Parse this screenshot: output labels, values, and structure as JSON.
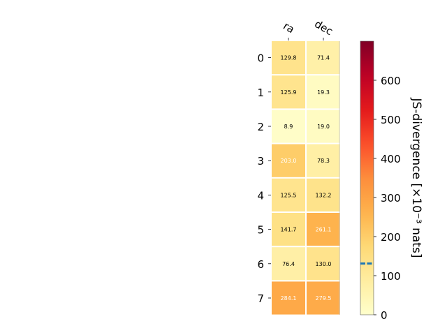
{
  "chart_data": {
    "type": "heatmap",
    "title": "",
    "columns": [
      "ra",
      "dec"
    ],
    "rows": [
      "0",
      "1",
      "2",
      "3",
      "4",
      "5",
      "6",
      "7"
    ],
    "values": [
      [
        129.8,
        71.4
      ],
      [
        125.9,
        19.3
      ],
      [
        8.9,
        19.0
      ],
      [
        203.0,
        78.3
      ],
      [
        125.5,
        132.2
      ],
      [
        141.7,
        261.1
      ],
      [
        76.4,
        130.0
      ],
      [
        284.1,
        279.5
      ]
    ],
    "cell_labels": [
      [
        "129.8",
        "71.4"
      ],
      [
        "125.9",
        "19.3"
      ],
      [
        "8.9",
        "19.0"
      ],
      [
        "203.0",
        "78.3"
      ],
      [
        "125.5",
        "132.2"
      ],
      [
        "141.7",
        "261.1"
      ],
      [
        "76.4",
        "130.0"
      ],
      [
        "284.1",
        "279.5"
      ]
    ],
    "colormap": "YlOrRd",
    "colorbar": {
      "label": "JS-divergence [×10⁻³ nats]",
      "range": [
        0,
        700
      ],
      "ticks": [
        0,
        100,
        200,
        300,
        400,
        500,
        600
      ],
      "tick_labels": [
        "0",
        "100",
        "200",
        "300",
        "400",
        "500",
        "600"
      ],
      "marker_value": 131,
      "marker_color": "#1f77b4"
    },
    "colors": {
      "text_dark": "#000000",
      "text_light": "#ffffff",
      "cell_border": "#ffffff"
    }
  }
}
